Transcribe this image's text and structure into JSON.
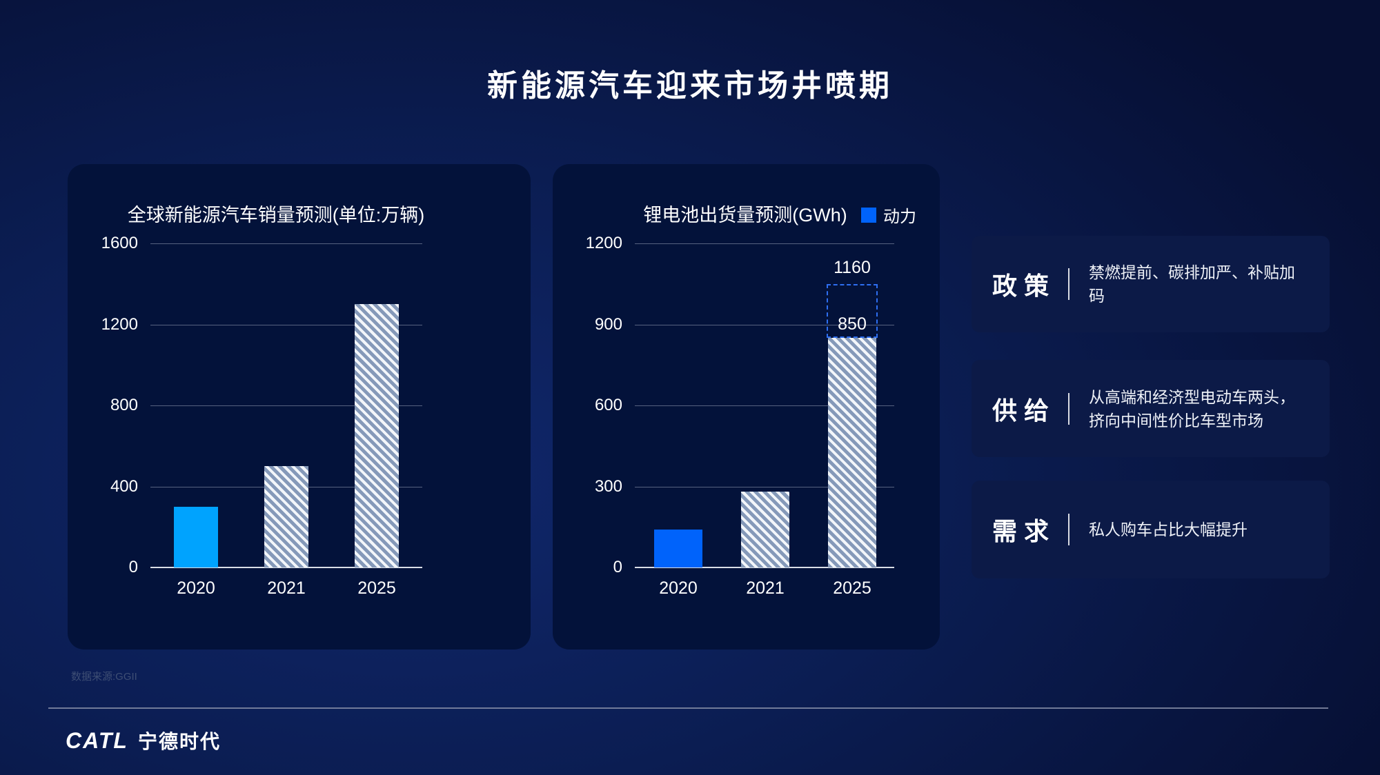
{
  "title": "新能源汽车迎来市场井喷期",
  "source_note": "数据来源:GGII",
  "logo": {
    "mark": "CATL",
    "name": "宁德时代"
  },
  "panels": [
    {
      "label": "政 策",
      "desc_lines": [
        "禁燃提前、碳排加严、补贴加码"
      ]
    },
    {
      "label": "供 给",
      "desc_lines": [
        "从高端和经济型电动车两头，",
        "挤向中间性价比车型市场"
      ]
    },
    {
      "label": "需 求",
      "desc_lines": [
        "私人购车占比大幅提升"
      ]
    }
  ],
  "colors": {
    "background_center": "#10276b",
    "background_edge": "#060f33",
    "card": "#03123a",
    "panel": "#0c1a47",
    "hatch_base": "#8599b9",
    "hatch_stripe": "#f3f6fa",
    "left_solid_bar": "#00a3fe",
    "right_solid_bar": "#0063fb",
    "dashed_projection": "#2e6ff2",
    "gridline": "rgba(190,198,214,0.45)"
  },
  "chart_data": [
    {
      "type": "bar",
      "title": "全球新能源汽车销量预测(单位:万辆)",
      "categories": [
        "2020",
        "2021",
        "2025"
      ],
      "values": [
        300,
        500,
        1300
      ],
      "ylim": [
        0,
        1600
      ],
      "yticks": [
        0,
        400,
        800,
        1200,
        1600
      ],
      "bar_styles": [
        "solid",
        "hatch",
        "hatch"
      ],
      "solid_color": "#00a3fe",
      "grid": true,
      "legend_position": "none"
    },
    {
      "type": "bar",
      "title": "锂电池出货量预测(GWh)",
      "legend": [
        {
          "label": "动力",
          "color": "#0063fb"
        }
      ],
      "legend_position": "top-right",
      "categories": [
        "2020",
        "2021",
        "2025"
      ],
      "values": [
        140,
        280,
        850
      ],
      "ylim": [
        0,
        1200
      ],
      "yticks": [
        0,
        300,
        600,
        900,
        1200
      ],
      "bar_styles": [
        "solid",
        "hatch",
        "hatch"
      ],
      "solid_color": "#0063fb",
      "grid": true,
      "annotations": {
        "bar_value_label": {
          "category": "2025",
          "text": "850"
        },
        "dashed_projection": {
          "category": "2025",
          "value": 1160,
          "label": "1160",
          "display_top_value": 1050
        }
      }
    }
  ]
}
